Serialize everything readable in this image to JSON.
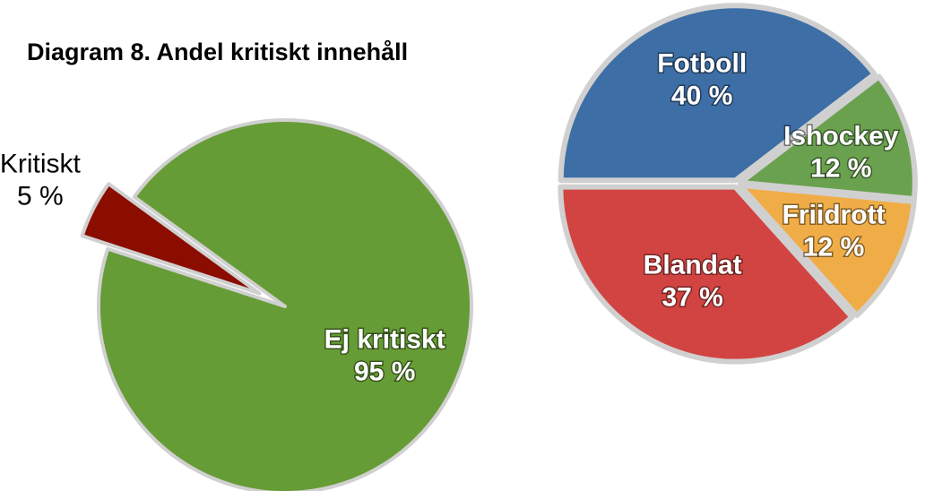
{
  "chart_data": [
    {
      "type": "pie",
      "title": "Diagram 8. Andel kritiskt innehåll",
      "categories": [
        "Kritiskt",
        "Ej kritiskt"
      ],
      "values": [
        5,
        95
      ],
      "value_labels": [
        "5 %",
        "95 %"
      ],
      "colors": [
        "#8a0d00",
        "#669c35"
      ]
    },
    {
      "type": "pie",
      "categories": [
        "Fotboll",
        "Ishockey",
        "Friidrott",
        "Blandat"
      ],
      "values": [
        40,
        12,
        12,
        37
      ],
      "value_labels": [
        "40 %",
        "12 %",
        "12 %",
        "37 %"
      ],
      "colors": [
        "#3d6ea6",
        "#6aa14f",
        "#f0ad47",
        "#d24442"
      ]
    }
  ]
}
